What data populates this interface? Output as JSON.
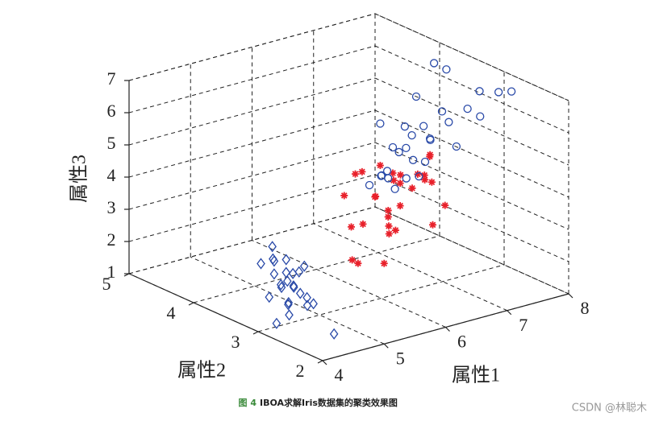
{
  "chart_data": {
    "type": "scatter3d",
    "xlabel": "属性1",
    "ylabel": "属性2",
    "zlabel": "属性3",
    "caption_label": "图 4",
    "caption": "IBOA求解Iris数据集的聚类效果图",
    "watermark": "CSDN @林聪木",
    "xlim": [
      4,
      8
    ],
    "ylim": [
      2,
      5
    ],
    "zlim": [
      1,
      7
    ],
    "xticks": [
      4,
      5,
      6,
      7,
      8
    ],
    "yticks": [
      2,
      3,
      4,
      5
    ],
    "zticks": [
      1,
      2,
      3,
      4,
      5,
      6,
      7
    ],
    "grid": true,
    "series": [
      {
        "color": "#2a4aa8",
        "marker": "diamond",
        "x": [
          5.1,
          4.9,
          4.7,
          4.6,
          5.0,
          5.4,
          4.6,
          5.0,
          4.4,
          4.9,
          5.4,
          4.8,
          4.3,
          5.8,
          5.7,
          5.4,
          5.1,
          5.2,
          5.5,
          4.5,
          5.0,
          5.1,
          4.8,
          5.3,
          5.0
        ],
        "y": [
          3.5,
          3.0,
          3.2,
          3.1,
          3.6,
          3.9,
          3.4,
          3.4,
          2.9,
          3.1,
          3.7,
          3.4,
          3.0,
          4.0,
          4.4,
          3.9,
          3.8,
          4.1,
          4.2,
          2.3,
          3.5,
          3.8,
          3.0,
          3.7,
          3.3
        ],
        "z": [
          1.4,
          1.4,
          1.3,
          1.5,
          1.4,
          1.7,
          1.4,
          1.5,
          1.4,
          1.5,
          1.5,
          1.6,
          1.1,
          1.2,
          1.5,
          1.3,
          1.5,
          1.5,
          1.4,
          1.3,
          1.6,
          1.9,
          1.4,
          1.5,
          1.4
        ]
      },
      {
        "color": "#e8202a",
        "marker": "star",
        "x": [
          7.0,
          6.4,
          6.9,
          5.5,
          6.5,
          5.7,
          6.3,
          4.9,
          6.6,
          5.2,
          5.0,
          5.9,
          6.0,
          6.1,
          5.6,
          6.7,
          5.8,
          6.2,
          5.6,
          5.9,
          6.1,
          6.3,
          6.1,
          6.4,
          5.5,
          5.8,
          6.0,
          5.4,
          6.0,
          5.1
        ],
        "y": [
          3.2,
          3.2,
          3.1,
          2.3,
          2.8,
          2.8,
          3.3,
          2.4,
          2.9,
          2.7,
          2.0,
          3.0,
          2.2,
          2.9,
          2.9,
          3.1,
          2.7,
          2.2,
          2.5,
          3.2,
          2.8,
          2.5,
          2.8,
          2.9,
          2.4,
          2.7,
          2.7,
          3.0,
          3.4,
          2.5
        ],
        "z": [
          4.7,
          4.5,
          4.9,
          4.0,
          4.6,
          4.5,
          4.7,
          3.3,
          4.6,
          3.9,
          3.5,
          4.2,
          4.0,
          4.7,
          3.6,
          4.4,
          4.1,
          4.5,
          3.9,
          4.8,
          4.0,
          4.9,
          4.7,
          4.3,
          3.8,
          3.9,
          5.1,
          4.5,
          4.5,
          3.0
        ]
      },
      {
        "color": "#2a4aa8",
        "marker": "circle",
        "x": [
          6.3,
          5.8,
          7.1,
          6.3,
          6.5,
          7.6,
          7.3,
          6.7,
          7.2,
          6.5,
          6.4,
          6.8,
          5.7,
          6.4,
          7.7,
          7.7,
          6.9,
          5.6,
          7.7,
          6.3,
          6.7,
          7.2,
          6.2,
          6.1,
          7.9,
          7.4,
          6.1,
          6.0,
          6.9,
          5.8
        ],
        "y": [
          3.3,
          2.7,
          3.0,
          2.9,
          3.0,
          3.0,
          2.9,
          2.5,
          3.6,
          3.2,
          2.7,
          3.0,
          2.5,
          3.2,
          3.8,
          2.6,
          3.2,
          2.8,
          2.8,
          2.7,
          3.3,
          3.2,
          2.8,
          3.0,
          3.8,
          2.8,
          2.6,
          3.0,
          3.1,
          2.8
        ],
        "z": [
          6.0,
          5.1,
          5.9,
          5.6,
          5.8,
          6.6,
          6.3,
          5.8,
          6.1,
          5.1,
          5.3,
          5.5,
          5.0,
          5.3,
          6.7,
          6.9,
          5.7,
          4.9,
          6.7,
          4.9,
          5.7,
          6.0,
          4.8,
          4.9,
          6.4,
          6.1,
          5.6,
          4.8,
          5.4,
          5.1
        ]
      }
    ]
  }
}
